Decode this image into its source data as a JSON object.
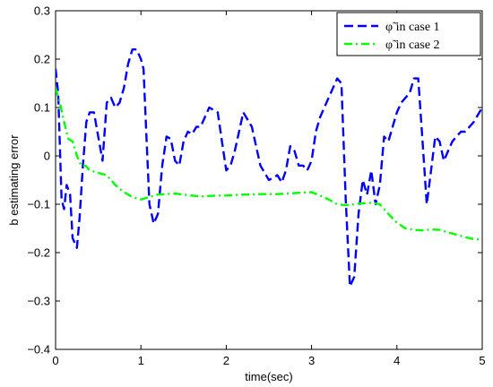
{
  "chart_data": {
    "type": "line",
    "xlabel": "time(sec)",
    "ylabel": "b estimating error",
    "xlim": [
      0,
      5
    ],
    "ylim": [
      -0.4,
      0.3
    ],
    "xticks": [
      0,
      1,
      2,
      3,
      4,
      5
    ],
    "xtick_labels": [
      "0",
      "1",
      "2",
      "3",
      "4",
      "5"
    ],
    "yticks": [
      -0.4,
      -0.3,
      -0.2,
      -0.1,
      0,
      0.1,
      0.2,
      0.3
    ],
    "ytick_labels": [
      "−0.4",
      "−0.3",
      "−0.2",
      "−0.1",
      "0",
      "0.1",
      "0.2",
      "0.3"
    ],
    "grid": false,
    "legend_position": "top-right",
    "series": [
      {
        "name": "φ̃ in case 1",
        "color": "#0000ff",
        "style": "dashed",
        "x": [
          0,
          0.03,
          0.07,
          0.1,
          0.13,
          0.17,
          0.2,
          0.25,
          0.28,
          0.32,
          0.36,
          0.4,
          0.45,
          0.5,
          0.55,
          0.6,
          0.65,
          0.7,
          0.75,
          0.8,
          0.85,
          0.9,
          0.95,
          1.0,
          1.03,
          1.06,
          1.1,
          1.15,
          1.2,
          1.25,
          1.3,
          1.35,
          1.4,
          1.45,
          1.5,
          1.55,
          1.6,
          1.65,
          1.7,
          1.8,
          1.9,
          1.95,
          2.0,
          2.05,
          2.1,
          2.15,
          2.2,
          2.3,
          2.35,
          2.4,
          2.5,
          2.6,
          2.65,
          2.7,
          2.75,
          2.8,
          2.85,
          2.9,
          2.95,
          3.0,
          3.05,
          3.1,
          3.2,
          3.3,
          3.35,
          3.4,
          3.45,
          3.5,
          3.55,
          3.6,
          3.65,
          3.7,
          3.75,
          3.8,
          3.85,
          3.9,
          3.95,
          4.0,
          4.05,
          4.1,
          4.15,
          4.2,
          4.25,
          4.3,
          4.35,
          4.4,
          4.45,
          4.5,
          4.55,
          4.6,
          4.65,
          4.7,
          4.75,
          4.8,
          4.9,
          5.0
        ],
        "y": [
          0.18,
          0.13,
          -0.09,
          -0.11,
          -0.06,
          -0.08,
          -0.17,
          -0.19,
          -0.13,
          -0.02,
          0.07,
          0.09,
          0.09,
          0.04,
          -0.01,
          0.11,
          0.12,
          0.1,
          0.11,
          0.14,
          0.19,
          0.22,
          0.22,
          0.2,
          0.18,
          0.06,
          -0.1,
          -0.14,
          -0.12,
          -0.02,
          0.04,
          0.035,
          -0.01,
          -0.02,
          0.03,
          0.05,
          0.045,
          0.06,
          0.06,
          0.1,
          0.09,
          0.03,
          -0.03,
          -0.02,
          0.01,
          0.05,
          0.09,
          0.06,
          0.02,
          -0.02,
          -0.05,
          -0.04,
          -0.055,
          -0.03,
          0.02,
          0.01,
          -0.02,
          -0.02,
          -0.03,
          -0.01,
          0.05,
          0.08,
          0.12,
          0.16,
          0.15,
          -0.09,
          -0.27,
          -0.25,
          -0.12,
          -0.05,
          -0.08,
          -0.03,
          -0.1,
          -0.06,
          0.04,
          0.03,
          0.06,
          0.09,
          0.11,
          0.12,
          0.13,
          0.16,
          0.16,
          0.03,
          -0.1,
          -0.03,
          0.04,
          0.03,
          -0.01,
          0.01,
          0.03,
          0.04,
          0.05,
          0.05,
          0.07,
          0.1
        ]
      },
      {
        "name": "φ̃ in case 2",
        "color": "#00ff00",
        "style": "dashdot",
        "x": [
          0,
          0.05,
          0.1,
          0.15,
          0.2,
          0.25,
          0.3,
          0.35,
          0.4,
          0.5,
          0.6,
          0.7,
          0.8,
          0.9,
          1.0,
          1.1,
          1.2,
          1.3,
          1.4,
          1.5,
          1.6,
          1.7,
          1.8,
          1.9,
          2.0,
          2.2,
          2.4,
          2.6,
          2.8,
          3.0,
          3.1,
          3.2,
          3.3,
          3.4,
          3.5,
          3.6,
          3.7,
          3.8,
          3.9,
          4.0,
          4.1,
          4.2,
          4.3,
          4.4,
          4.5,
          4.6,
          4.7,
          4.8,
          4.9,
          5.0
        ],
        "y": [
          0.14,
          0.11,
          0.07,
          0.035,
          0.03,
          0.0,
          -0.02,
          -0.02,
          -0.03,
          -0.035,
          -0.04,
          -0.06,
          -0.075,
          -0.085,
          -0.09,
          -0.085,
          -0.08,
          -0.079,
          -0.078,
          -0.08,
          -0.082,
          -0.084,
          -0.083,
          -0.082,
          -0.082,
          -0.08,
          -0.079,
          -0.079,
          -0.077,
          -0.075,
          -0.082,
          -0.09,
          -0.1,
          -0.102,
          -0.1,
          -0.098,
          -0.097,
          -0.1,
          -0.12,
          -0.138,
          -0.15,
          -0.153,
          -0.154,
          -0.152,
          -0.153,
          -0.158,
          -0.163,
          -0.168,
          -0.172,
          -0.173
        ]
      }
    ]
  }
}
